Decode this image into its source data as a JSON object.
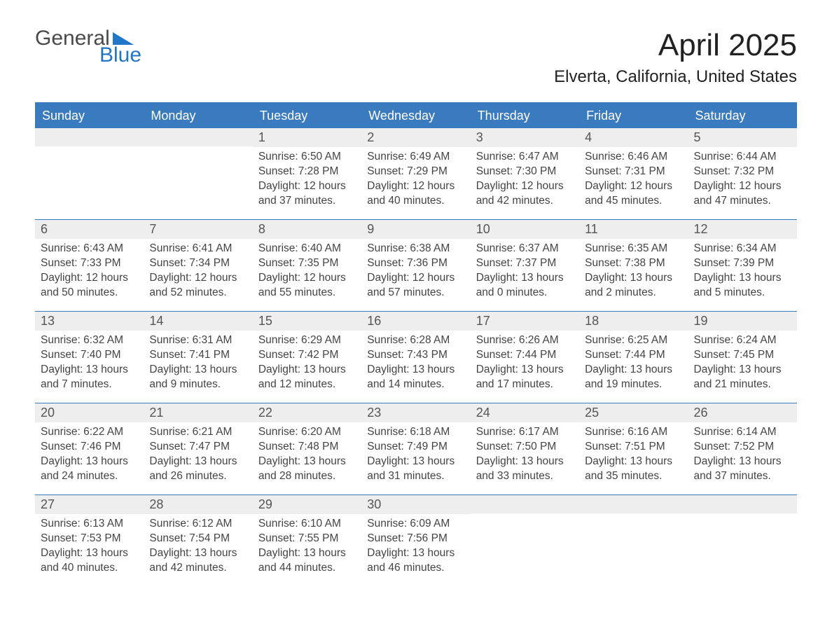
{
  "brand": {
    "word1": "General",
    "word2": "Blue"
  },
  "title": "April 2025",
  "location": "Elverta, California, United States",
  "colors": {
    "header_bg": "#3a7abf",
    "header_text": "#ffffff",
    "daynum_bg": "#eeeeee",
    "text": "#444444",
    "brand_gray": "#4a4a4a",
    "brand_blue": "#2176c7",
    "rule": "#3a7abf"
  },
  "font": {
    "title_size": 44,
    "location_size": 24,
    "dow_size": 18,
    "body_size": 15.5
  },
  "days_of_week": [
    "Sunday",
    "Monday",
    "Tuesday",
    "Wednesday",
    "Thursday",
    "Friday",
    "Saturday"
  ],
  "weeks": [
    [
      {
        "n": "",
        "sr": "",
        "ss": "",
        "dl": "",
        "empty": true
      },
      {
        "n": "",
        "sr": "",
        "ss": "",
        "dl": "",
        "empty": true
      },
      {
        "n": "1",
        "sr": "Sunrise: 6:50 AM",
        "ss": "Sunset: 7:28 PM",
        "dl": "Daylight: 12 hours and 37 minutes."
      },
      {
        "n": "2",
        "sr": "Sunrise: 6:49 AM",
        "ss": "Sunset: 7:29 PM",
        "dl": "Daylight: 12 hours and 40 minutes."
      },
      {
        "n": "3",
        "sr": "Sunrise: 6:47 AM",
        "ss": "Sunset: 7:30 PM",
        "dl": "Daylight: 12 hours and 42 minutes."
      },
      {
        "n": "4",
        "sr": "Sunrise: 6:46 AM",
        "ss": "Sunset: 7:31 PM",
        "dl": "Daylight: 12 hours and 45 minutes."
      },
      {
        "n": "5",
        "sr": "Sunrise: 6:44 AM",
        "ss": "Sunset: 7:32 PM",
        "dl": "Daylight: 12 hours and 47 minutes."
      }
    ],
    [
      {
        "n": "6",
        "sr": "Sunrise: 6:43 AM",
        "ss": "Sunset: 7:33 PM",
        "dl": "Daylight: 12 hours and 50 minutes."
      },
      {
        "n": "7",
        "sr": "Sunrise: 6:41 AM",
        "ss": "Sunset: 7:34 PM",
        "dl": "Daylight: 12 hours and 52 minutes."
      },
      {
        "n": "8",
        "sr": "Sunrise: 6:40 AM",
        "ss": "Sunset: 7:35 PM",
        "dl": "Daylight: 12 hours and 55 minutes."
      },
      {
        "n": "9",
        "sr": "Sunrise: 6:38 AM",
        "ss": "Sunset: 7:36 PM",
        "dl": "Daylight: 12 hours and 57 minutes."
      },
      {
        "n": "10",
        "sr": "Sunrise: 6:37 AM",
        "ss": "Sunset: 7:37 PM",
        "dl": "Daylight: 13 hours and 0 minutes."
      },
      {
        "n": "11",
        "sr": "Sunrise: 6:35 AM",
        "ss": "Sunset: 7:38 PM",
        "dl": "Daylight: 13 hours and 2 minutes."
      },
      {
        "n": "12",
        "sr": "Sunrise: 6:34 AM",
        "ss": "Sunset: 7:39 PM",
        "dl": "Daylight: 13 hours and 5 minutes."
      }
    ],
    [
      {
        "n": "13",
        "sr": "Sunrise: 6:32 AM",
        "ss": "Sunset: 7:40 PM",
        "dl": "Daylight: 13 hours and 7 minutes."
      },
      {
        "n": "14",
        "sr": "Sunrise: 6:31 AM",
        "ss": "Sunset: 7:41 PM",
        "dl": "Daylight: 13 hours and 9 minutes."
      },
      {
        "n": "15",
        "sr": "Sunrise: 6:29 AM",
        "ss": "Sunset: 7:42 PM",
        "dl": "Daylight: 13 hours and 12 minutes."
      },
      {
        "n": "16",
        "sr": "Sunrise: 6:28 AM",
        "ss": "Sunset: 7:43 PM",
        "dl": "Daylight: 13 hours and 14 minutes."
      },
      {
        "n": "17",
        "sr": "Sunrise: 6:26 AM",
        "ss": "Sunset: 7:44 PM",
        "dl": "Daylight: 13 hours and 17 minutes."
      },
      {
        "n": "18",
        "sr": "Sunrise: 6:25 AM",
        "ss": "Sunset: 7:44 PM",
        "dl": "Daylight: 13 hours and 19 minutes."
      },
      {
        "n": "19",
        "sr": "Sunrise: 6:24 AM",
        "ss": "Sunset: 7:45 PM",
        "dl": "Daylight: 13 hours and 21 minutes."
      }
    ],
    [
      {
        "n": "20",
        "sr": "Sunrise: 6:22 AM",
        "ss": "Sunset: 7:46 PM",
        "dl": "Daylight: 13 hours and 24 minutes."
      },
      {
        "n": "21",
        "sr": "Sunrise: 6:21 AM",
        "ss": "Sunset: 7:47 PM",
        "dl": "Daylight: 13 hours and 26 minutes."
      },
      {
        "n": "22",
        "sr": "Sunrise: 6:20 AM",
        "ss": "Sunset: 7:48 PM",
        "dl": "Daylight: 13 hours and 28 minutes."
      },
      {
        "n": "23",
        "sr": "Sunrise: 6:18 AM",
        "ss": "Sunset: 7:49 PM",
        "dl": "Daylight: 13 hours and 31 minutes."
      },
      {
        "n": "24",
        "sr": "Sunrise: 6:17 AM",
        "ss": "Sunset: 7:50 PM",
        "dl": "Daylight: 13 hours and 33 minutes."
      },
      {
        "n": "25",
        "sr": "Sunrise: 6:16 AM",
        "ss": "Sunset: 7:51 PM",
        "dl": "Daylight: 13 hours and 35 minutes."
      },
      {
        "n": "26",
        "sr": "Sunrise: 6:14 AM",
        "ss": "Sunset: 7:52 PM",
        "dl": "Daylight: 13 hours and 37 minutes."
      }
    ],
    [
      {
        "n": "27",
        "sr": "Sunrise: 6:13 AM",
        "ss": "Sunset: 7:53 PM",
        "dl": "Daylight: 13 hours and 40 minutes."
      },
      {
        "n": "28",
        "sr": "Sunrise: 6:12 AM",
        "ss": "Sunset: 7:54 PM",
        "dl": "Daylight: 13 hours and 42 minutes."
      },
      {
        "n": "29",
        "sr": "Sunrise: 6:10 AM",
        "ss": "Sunset: 7:55 PM",
        "dl": "Daylight: 13 hours and 44 minutes."
      },
      {
        "n": "30",
        "sr": "Sunrise: 6:09 AM",
        "ss": "Sunset: 7:56 PM",
        "dl": "Daylight: 13 hours and 46 minutes."
      },
      {
        "n": "",
        "sr": "",
        "ss": "",
        "dl": "",
        "empty": true
      },
      {
        "n": "",
        "sr": "",
        "ss": "",
        "dl": "",
        "empty": true
      },
      {
        "n": "",
        "sr": "",
        "ss": "",
        "dl": "",
        "empty": true
      }
    ]
  ]
}
